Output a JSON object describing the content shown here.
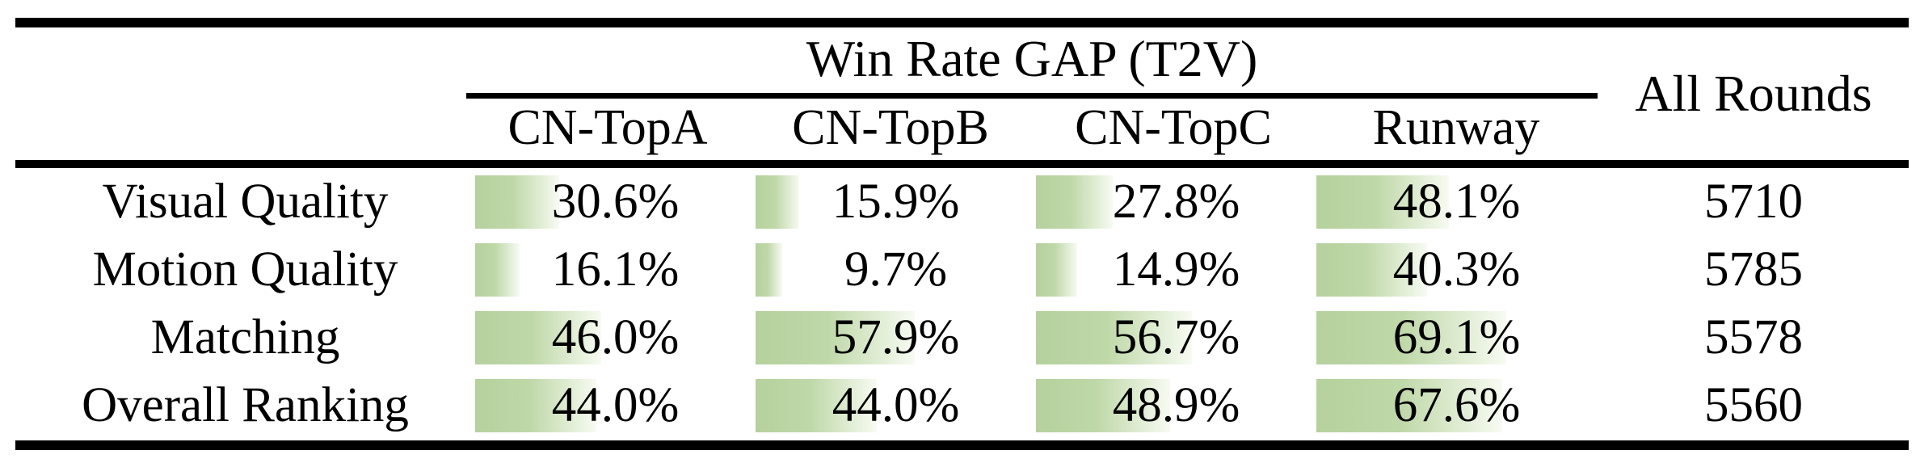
{
  "table": {
    "group_header": "Win Rate GAP (T2V)",
    "columns": [
      "CN-TopA",
      "CN-TopB",
      "CN-TopC",
      "Runway"
    ],
    "all_rounds_header": "All Rounds",
    "rows": [
      {
        "label": "Visual Quality",
        "cells": [
          {
            "value": 30.6,
            "text": "30.6%"
          },
          {
            "value": 15.9,
            "text": "15.9%"
          },
          {
            "value": 27.8,
            "text": "27.8%"
          },
          {
            "value": 48.1,
            "text": "48.1%"
          }
        ],
        "all_rounds": "5710"
      },
      {
        "label": "Motion Quality",
        "cells": [
          {
            "value": 16.1,
            "text": "16.1%"
          },
          {
            "value": 9.7,
            "text": "9.7%"
          },
          {
            "value": 14.9,
            "text": "14.9%"
          },
          {
            "value": 40.3,
            "text": "40.3%"
          }
        ],
        "all_rounds": "5785"
      },
      {
        "label": "Matching",
        "cells": [
          {
            "value": 46.0,
            "text": "46.0%"
          },
          {
            "value": 57.9,
            "text": "57.9%"
          },
          {
            "value": 56.7,
            "text": "56.7%"
          },
          {
            "value": 69.1,
            "text": "69.1%"
          }
        ],
        "all_rounds": "5578"
      },
      {
        "label": "Overall Ranking",
        "cells": [
          {
            "value": 44.0,
            "text": "44.0%"
          },
          {
            "value": 44.0,
            "text": "44.0%"
          },
          {
            "value": 48.9,
            "text": "48.9%"
          },
          {
            "value": 67.6,
            "text": "67.6%"
          }
        ],
        "all_rounds": "5560"
      }
    ]
  },
  "colors": {
    "bar_green": "#b5d19d",
    "bar_green_mid": "#bfd8a8",
    "bar_fade": "#f7fbf2",
    "rule_black": "#000000",
    "text": "#000000"
  },
  "chart_data": {
    "type": "table",
    "title": "Win Rate GAP (T2V)",
    "categories": [
      "Visual Quality",
      "Motion Quality",
      "Matching",
      "Overall Ranking"
    ],
    "series": [
      {
        "name": "CN-TopA",
        "values": [
          30.6,
          16.1,
          46.0,
          44.0
        ],
        "unit": "%"
      },
      {
        "name": "CN-TopB",
        "values": [
          15.9,
          9.7,
          57.9,
          44.0
        ],
        "unit": "%"
      },
      {
        "name": "CN-TopC",
        "values": [
          27.8,
          14.9,
          56.7,
          48.9
        ],
        "unit": "%"
      },
      {
        "name": "Runway",
        "values": [
          48.1,
          40.3,
          69.1,
          67.6
        ],
        "unit": "%"
      },
      {
        "name": "All Rounds",
        "values": [
          5710,
          5785,
          5578,
          5560
        ],
        "unit": "count"
      }
    ],
    "bar_scale": "data bars anchored left, width proportional to percent, 0-100% range",
    "legend_position": "none",
    "grid": false
  }
}
